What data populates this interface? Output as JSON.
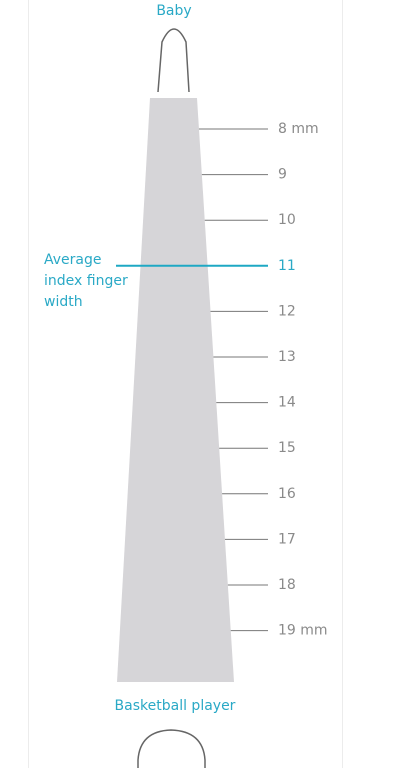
{
  "top_label": "Baby",
  "bottom_label": "Basketball player",
  "annotation": [
    "Average",
    "index finger",
    "width"
  ],
  "scale_labels": [
    "8 mm",
    "9",
    "10",
    "11",
    "12",
    "13",
    "14",
    "15",
    "16",
    "17",
    "18",
    "19 mm"
  ]
}
